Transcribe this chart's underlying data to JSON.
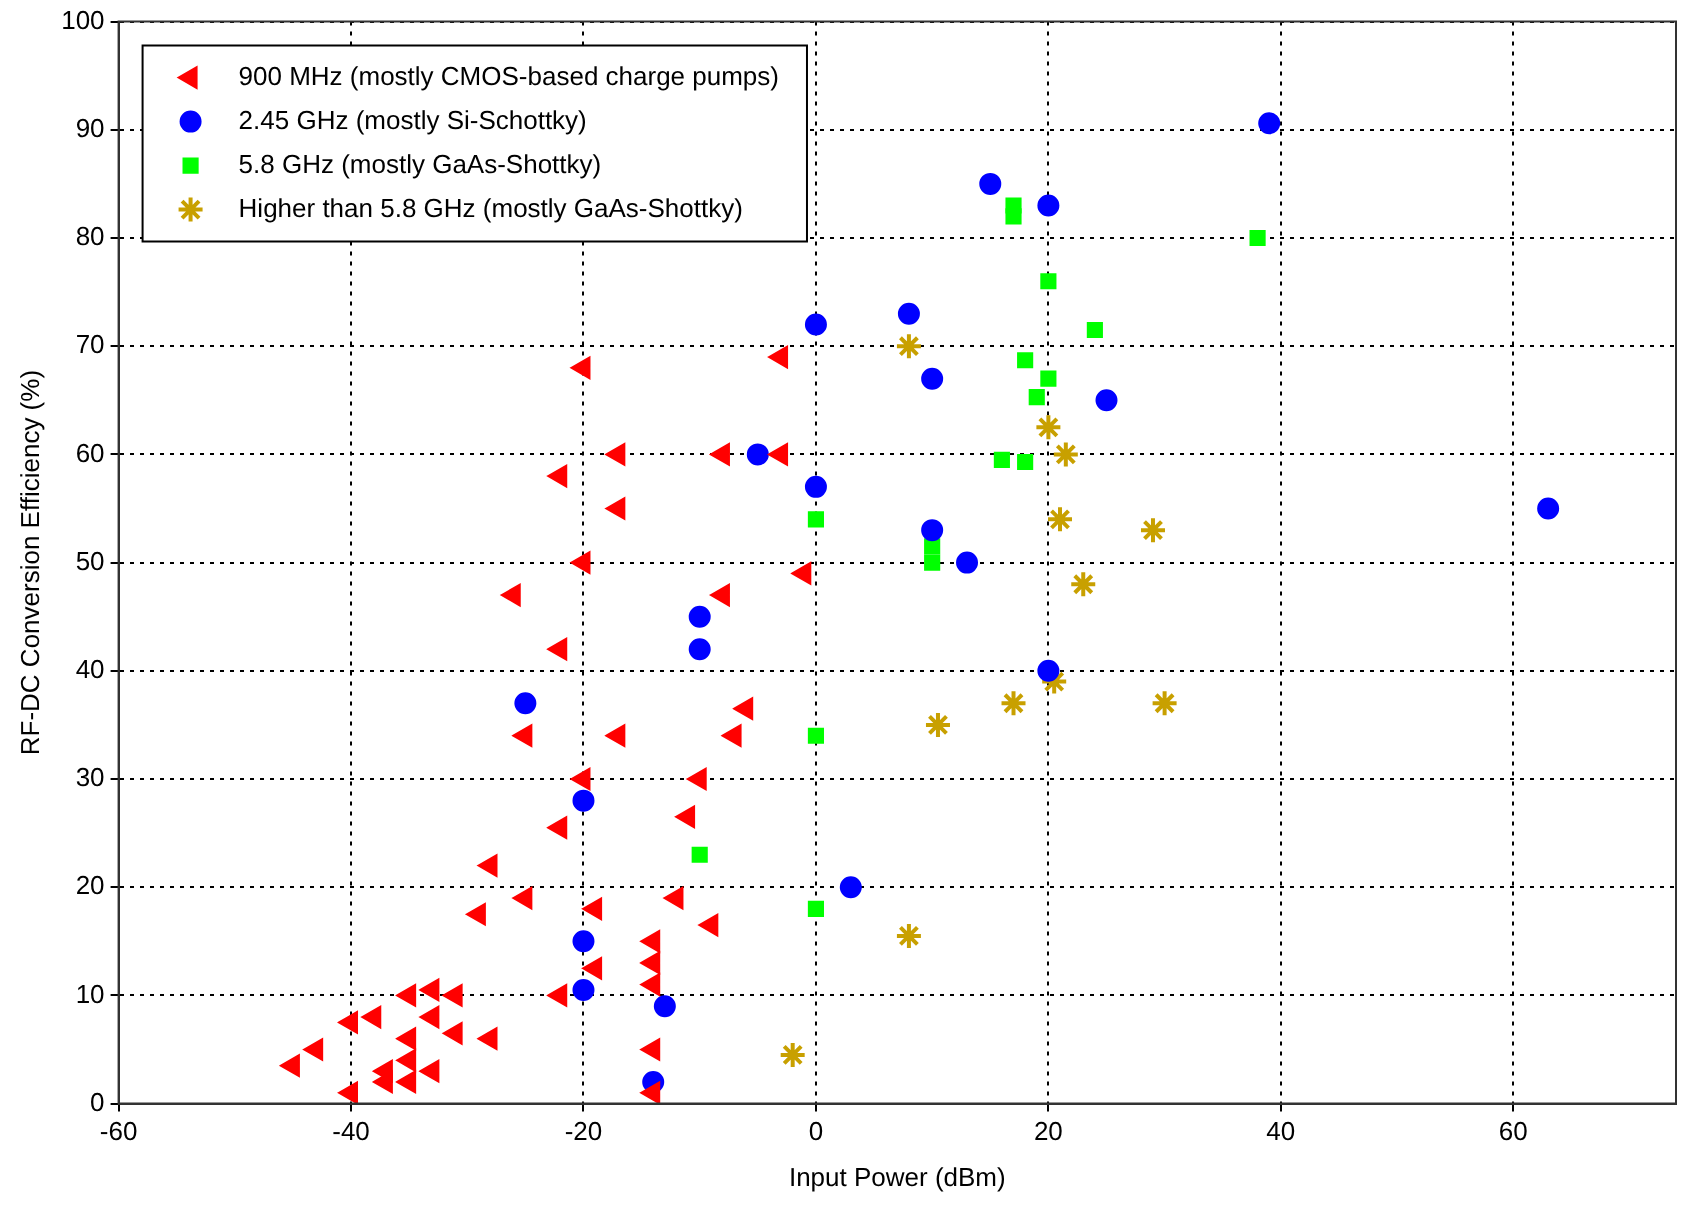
{
  "chart_data": {
    "type": "scatter",
    "xlabel": "Input Power (dBm)",
    "ylabel": "RF-DC Conversion Efficiency (%)",
    "xlim": [
      -60,
      74
    ],
    "xticks": [
      -60,
      -40,
      -20,
      0,
      20,
      40,
      60
    ],
    "ylim": [
      0,
      100
    ],
    "yticks": [
      0,
      10,
      20,
      30,
      40,
      50,
      60,
      70,
      80,
      90,
      100
    ],
    "grid": true,
    "legend": "top left",
    "series": [
      {
        "name": "900 MHz (mostly CMOS-based charge pumps)",
        "color": "#ff0000",
        "marker": "triangle",
        "x": [
          -45,
          -43,
          -40,
          -40,
          -38,
          -37,
          -37,
          -35,
          -35,
          -35,
          -35,
          -33,
          -33,
          -33,
          -31,
          -31,
          -29,
          -28,
          -28,
          -26,
          -25,
          -25,
          -22,
          -22,
          -22,
          -22,
          -20,
          -20,
          -20,
          -19,
          -19,
          -17,
          -17,
          -17,
          -14,
          -14,
          -14,
          -14,
          -14,
          -12,
          -11,
          -10,
          -9,
          -8,
          -8,
          -7,
          -6,
          -3,
          -3,
          -1
        ],
        "values": [
          3.5,
          5,
          7.5,
          1,
          8,
          3,
          2,
          10,
          6,
          4,
          2,
          10.5,
          8,
          3,
          10,
          6.5,
          17.5,
          22,
          6,
          47,
          34,
          19,
          58,
          42,
          25.5,
          10,
          68,
          50,
          30,
          18,
          12.5,
          60,
          55,
          34,
          15,
          13,
          11,
          5,
          1,
          19,
          26.5,
          30,
          16.5,
          60,
          47,
          34,
          36.5,
          69,
          60,
          49
        ]
      },
      {
        "name": "2.45 GHz (mostly Si-Schottky)",
        "color": "#0000ff",
        "marker": "circle",
        "x": [
          -25,
          -20,
          -20,
          -20,
          -13,
          -14,
          -10,
          -10,
          -5,
          0,
          0,
          3,
          8,
          10,
          10,
          13,
          15,
          20,
          20,
          25,
          39,
          63
        ],
        "values": [
          37,
          28,
          15,
          10.5,
          9,
          2,
          45,
          42,
          60,
          72,
          57,
          20,
          73,
          67,
          53,
          50,
          85,
          83,
          40,
          65,
          90.6,
          55
        ]
      },
      {
        "name": "5.8 GHz (mostly GaAs-Shottky)",
        "color": "#00ff00",
        "marker": "square",
        "x": [
          -10,
          0,
          0,
          0,
          10,
          10,
          16,
          17,
          17,
          18,
          18,
          19,
          20,
          20,
          24,
          38
        ],
        "values": [
          23,
          54,
          34,
          18,
          51.5,
          50,
          59.5,
          83,
          82,
          68.7,
          59.3,
          65.3,
          76,
          67,
          71.5,
          80
        ]
      },
      {
        "name": "Higher than 5.8 GHz (mostly GaAs-Shottky)",
        "color": "#c8a000",
        "marker": "cross",
        "x": [
          -2,
          8,
          8,
          10.5,
          17,
          20,
          20.5,
          21,
          21.5,
          23,
          29,
          30
        ],
        "values": [
          4.5,
          70,
          15.5,
          35,
          37,
          62.5,
          39,
          54,
          60,
          48,
          53,
          37
        ]
      }
    ]
  }
}
